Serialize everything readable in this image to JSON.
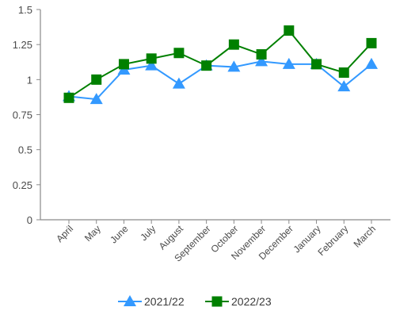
{
  "chart_data": {
    "type": "line",
    "categories": [
      "April",
      "May",
      "June",
      "July",
      "August",
      "September",
      "October",
      "November",
      "December",
      "January",
      "February",
      "March"
    ],
    "series": [
      {
        "name": "2021/22",
        "color": "#3399ff",
        "marker": "triangle",
        "values": [
          0.88,
          0.86,
          1.07,
          1.1,
          0.97,
          1.1,
          1.09,
          1.13,
          1.11,
          1.11,
          0.95,
          1.11
        ]
      },
      {
        "name": "2022/23",
        "color": "#008000",
        "marker": "square",
        "values": [
          0.87,
          1.0,
          1.11,
          1.15,
          1.19,
          1.1,
          1.25,
          1.18,
          1.35,
          1.11,
          1.05,
          1.26
        ]
      }
    ],
    "ylim": [
      0,
      1.5
    ],
    "yticks": [
      "0",
      "0.25",
      "0.5",
      "0.75",
      "1",
      "1.25",
      "1.5"
    ],
    "grid": false,
    "legend": "bottom"
  }
}
